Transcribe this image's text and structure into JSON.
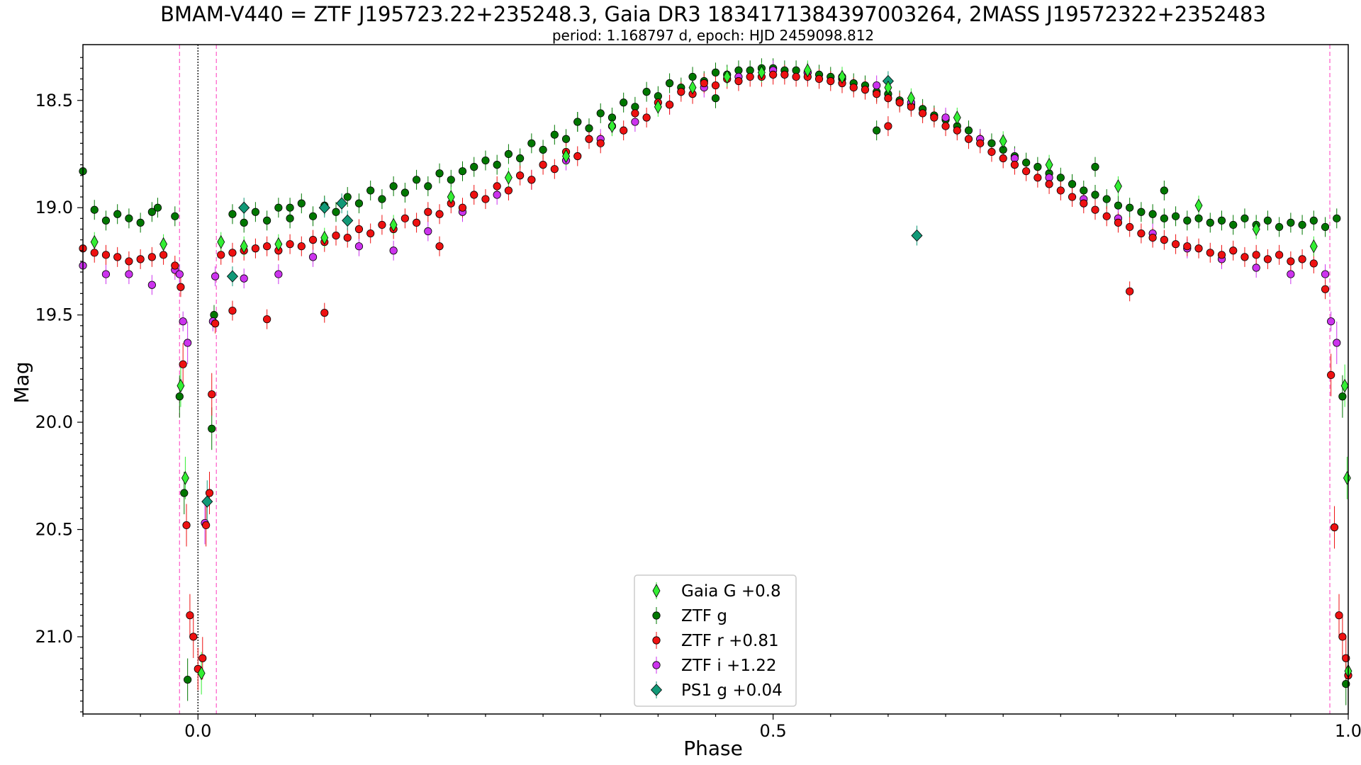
{
  "chart_data": {
    "type": "scatter",
    "title": "BMAM-V440 = ZTF J195723.22+235248.3, Gaia DR3 1834171384397003264, 2MASS J19572322+2352483",
    "subtitle": "period: 1.168797 d, epoch: HJD 2459098.812",
    "xlabel": "Phase",
    "ylabel": "Mag",
    "xlim": [
      -0.1,
      1.0
    ],
    "ylim": [
      21.36,
      18.24
    ],
    "y_inverted": true,
    "x_ticks": [
      0.0,
      0.5,
      1.0
    ],
    "x_tick_labels": [
      "0.0",
      "0.5",
      "1.0"
    ],
    "y_ticks": [
      18.5,
      19.0,
      19.5,
      20.0,
      20.5,
      21.0
    ],
    "y_tick_labels": [
      "18.5",
      "19.0",
      "19.5",
      "20.0",
      "20.5",
      "21.0"
    ],
    "grid": false,
    "legend_position": "bottom-center",
    "vertical_lines": [
      {
        "x": 0.0,
        "style": "dotted",
        "color": "#000000"
      },
      {
        "x": -0.016,
        "style": "dashed",
        "color": "#ff66cc"
      },
      {
        "x": 0.016,
        "style": "dashed",
        "color": "#ff66cc"
      },
      {
        "x": 0.984,
        "style": "dashed",
        "color": "#ff66cc"
      }
    ],
    "series": [
      {
        "name": "Gaia G +0.8",
        "marker": "thin-diamond",
        "color": "#33ee33",
        "x": [
          -0.09,
          -0.03,
          0.02,
          0.04,
          0.07,
          0.11,
          0.17,
          0.22,
          0.27,
          0.32,
          0.36,
          0.4,
          0.43,
          0.46,
          0.49,
          0.53,
          0.56,
          0.6,
          0.62,
          0.66,
          0.7,
          0.74,
          0.8,
          0.87,
          0.92,
          0.97,
          -0.015,
          -0.011,
          0.003,
          0.997,
          0.999,
          1.0
        ],
        "y": [
          19.16,
          19.17,
          19.16,
          19.18,
          19.17,
          19.14,
          19.08,
          18.95,
          18.86,
          18.76,
          18.62,
          18.53,
          18.44,
          18.39,
          18.37,
          18.36,
          18.39,
          18.44,
          18.49,
          18.58,
          18.69,
          18.8,
          18.9,
          18.99,
          19.1,
          19.18,
          19.83,
          20.26,
          21.17,
          19.83,
          20.26,
          21.16
        ]
      },
      {
        "name": "ZTF g",
        "marker": "circle",
        "color": "#007700",
        "x": [
          -0.1,
          -0.09,
          -0.08,
          -0.07,
          -0.06,
          -0.05,
          -0.04,
          -0.035,
          -0.02,
          -0.016,
          -0.012,
          -0.009,
          0.012,
          0.014,
          0.03,
          0.04,
          0.05,
          0.06,
          0.07,
          0.08,
          0.09,
          0.1,
          0.11,
          0.12,
          0.13,
          0.14,
          0.15,
          0.16,
          0.17,
          0.18,
          0.19,
          0.2,
          0.21,
          0.22,
          0.23,
          0.24,
          0.25,
          0.26,
          0.27,
          0.28,
          0.29,
          0.3,
          0.31,
          0.32,
          0.33,
          0.34,
          0.35,
          0.36,
          0.37,
          0.38,
          0.39,
          0.4,
          0.41,
          0.42,
          0.43,
          0.44,
          0.45,
          0.46,
          0.47,
          0.48,
          0.49,
          0.5,
          0.51,
          0.52,
          0.53,
          0.54,
          0.55,
          0.56,
          0.57,
          0.58,
          0.59,
          0.6,
          0.61,
          0.62,
          0.63,
          0.64,
          0.65,
          0.66,
          0.67,
          0.68,
          0.69,
          0.7,
          0.71,
          0.72,
          0.73,
          0.74,
          0.75,
          0.76,
          0.77,
          0.78,
          0.79,
          0.8,
          0.81,
          0.82,
          0.83,
          0.84,
          0.85,
          0.86,
          0.87,
          0.88,
          0.89,
          0.9,
          0.91,
          0.92,
          0.93,
          0.94,
          0.95,
          0.96,
          0.97,
          0.98,
          0.99,
          0.995,
          0.998,
          0.59,
          0.45,
          0.78,
          0.84,
          0.08,
          0.33
        ],
        "y": [
          18.83,
          19.01,
          19.06,
          19.03,
          19.05,
          19.07,
          19.02,
          19.0,
          19.04,
          19.88,
          20.33,
          21.2,
          20.03,
          19.5,
          19.03,
          19.07,
          19.02,
          19.06,
          19.0,
          19.05,
          18.98,
          19.04,
          18.99,
          19.02,
          18.95,
          18.98,
          18.92,
          18.96,
          18.9,
          18.93,
          18.87,
          18.9,
          18.84,
          18.87,
          18.83,
          18.81,
          18.78,
          18.8,
          18.75,
          18.77,
          18.7,
          18.73,
          18.66,
          18.68,
          18.6,
          18.63,
          18.56,
          18.58,
          18.51,
          18.53,
          18.46,
          18.48,
          18.42,
          18.44,
          18.39,
          18.41,
          18.37,
          18.38,
          18.36,
          18.36,
          18.35,
          18.35,
          18.36,
          18.36,
          18.37,
          18.38,
          18.39,
          18.4,
          18.42,
          18.43,
          18.46,
          18.47,
          18.5,
          18.52,
          18.54,
          18.57,
          18.59,
          18.62,
          18.64,
          18.68,
          18.7,
          18.73,
          18.76,
          18.79,
          18.81,
          18.84,
          18.86,
          18.89,
          18.92,
          18.94,
          18.96,
          18.99,
          19.0,
          19.02,
          19.03,
          19.05,
          19.04,
          19.06,
          19.05,
          19.07,
          19.06,
          19.08,
          19.05,
          19.08,
          19.06,
          19.09,
          19.07,
          19.08,
          19.06,
          19.09,
          19.05,
          19.88,
          21.22,
          18.64,
          18.49,
          18.81,
          18.92,
          19.0,
          18.6
        ]
      },
      {
        "name": "ZTF r +0.81",
        "marker": "circle",
        "color": "#ee1111",
        "x": [
          -0.1,
          -0.09,
          -0.08,
          -0.07,
          -0.06,
          -0.05,
          -0.04,
          -0.03,
          -0.02,
          -0.015,
          -0.013,
          -0.01,
          -0.007,
          -0.004,
          0.0,
          0.004,
          0.007,
          0.01,
          0.012,
          0.015,
          0.02,
          0.03,
          0.04,
          0.05,
          0.06,
          0.07,
          0.08,
          0.09,
          0.1,
          0.11,
          0.12,
          0.13,
          0.14,
          0.15,
          0.16,
          0.17,
          0.18,
          0.19,
          0.2,
          0.21,
          0.22,
          0.23,
          0.24,
          0.25,
          0.26,
          0.27,
          0.28,
          0.29,
          0.3,
          0.31,
          0.32,
          0.33,
          0.34,
          0.35,
          0.36,
          0.37,
          0.38,
          0.39,
          0.4,
          0.41,
          0.42,
          0.43,
          0.44,
          0.45,
          0.46,
          0.47,
          0.48,
          0.49,
          0.5,
          0.51,
          0.52,
          0.53,
          0.54,
          0.55,
          0.56,
          0.57,
          0.58,
          0.59,
          0.6,
          0.61,
          0.62,
          0.63,
          0.64,
          0.65,
          0.66,
          0.67,
          0.68,
          0.69,
          0.7,
          0.71,
          0.72,
          0.73,
          0.74,
          0.75,
          0.76,
          0.77,
          0.78,
          0.79,
          0.8,
          0.81,
          0.82,
          0.83,
          0.84,
          0.85,
          0.86,
          0.87,
          0.88,
          0.89,
          0.9,
          0.91,
          0.92,
          0.93,
          0.94,
          0.95,
          0.96,
          0.97,
          0.98,
          0.985,
          0.988,
          0.992,
          0.995,
          0.998,
          1.0,
          0.03,
          0.06,
          0.11,
          0.21,
          0.81,
          0.6
        ],
        "y": [
          19.19,
          19.21,
          19.22,
          19.23,
          19.25,
          19.24,
          19.23,
          19.22,
          19.27,
          19.37,
          19.73,
          20.48,
          20.9,
          21.0,
          21.15,
          21.1,
          20.48,
          20.33,
          19.87,
          19.54,
          19.22,
          19.21,
          19.2,
          19.19,
          19.18,
          19.2,
          19.17,
          19.18,
          19.15,
          19.16,
          19.13,
          19.14,
          19.1,
          19.12,
          19.08,
          19.1,
          19.05,
          19.07,
          19.02,
          19.03,
          18.98,
          19.0,
          18.94,
          18.96,
          18.9,
          18.92,
          18.85,
          18.87,
          18.8,
          18.82,
          18.74,
          18.76,
          18.68,
          18.7,
          18.62,
          18.64,
          18.56,
          18.58,
          18.51,
          18.52,
          18.46,
          18.47,
          18.42,
          18.43,
          18.4,
          18.41,
          18.39,
          18.39,
          18.38,
          18.38,
          18.39,
          18.39,
          18.4,
          18.41,
          18.42,
          18.44,
          18.45,
          18.47,
          18.49,
          18.51,
          18.53,
          18.56,
          18.58,
          18.62,
          18.64,
          18.68,
          18.7,
          18.74,
          18.77,
          18.8,
          18.83,
          18.86,
          18.89,
          18.92,
          18.95,
          18.98,
          19.01,
          19.04,
          19.07,
          19.09,
          19.12,
          19.14,
          19.15,
          19.17,
          19.18,
          19.19,
          19.21,
          19.22,
          19.2,
          19.23,
          19.22,
          19.24,
          19.22,
          19.25,
          19.24,
          19.26,
          19.38,
          19.78,
          20.49,
          20.9,
          21.0,
          21.1,
          21.18,
          19.48,
          19.52,
          19.49,
          19.18,
          19.39,
          18.62
        ]
      },
      {
        "name": "ZTF i +1.22",
        "marker": "circle",
        "color": "#cc33ee",
        "x": [
          -0.1,
          -0.08,
          -0.06,
          -0.04,
          -0.02,
          -0.016,
          -0.013,
          -0.009,
          0.006,
          0.013,
          0.015,
          0.04,
          0.07,
          0.1,
          0.14,
          0.17,
          0.2,
          0.23,
          0.26,
          0.29,
          0.32,
          0.35,
          0.38,
          0.41,
          0.44,
          0.47,
          0.5,
          0.53,
          0.56,
          0.59,
          0.62,
          0.65,
          0.68,
          0.71,
          0.74,
          0.77,
          0.8,
          0.83,
          0.86,
          0.89,
          0.92,
          0.95,
          0.98,
          0.985,
          0.99
        ],
        "y": [
          19.27,
          19.31,
          19.31,
          19.36,
          19.29,
          19.31,
          19.53,
          19.63,
          20.47,
          19.53,
          19.32,
          19.33,
          19.31,
          19.23,
          19.18,
          19.2,
          19.11,
          19.02,
          18.94,
          18.87,
          18.78,
          18.68,
          18.6,
          18.52,
          18.44,
          18.39,
          18.36,
          18.37,
          18.39,
          18.43,
          18.51,
          18.58,
          18.68,
          18.77,
          18.86,
          18.96,
          19.05,
          19.12,
          19.19,
          19.24,
          19.28,
          19.31,
          19.31,
          19.53,
          19.63
        ]
      },
      {
        "name": "PS1 g +0.04",
        "marker": "diamond",
        "color": "#119977",
        "x": [
          0.008,
          0.04,
          0.03,
          0.11,
          0.125,
          0.13,
          0.6,
          0.625
        ],
        "y": [
          20.37,
          19.0,
          19.32,
          19.0,
          18.98,
          19.06,
          18.41,
          19.13
        ]
      }
    ],
    "legend": [
      "Gaia G +0.8",
      "ZTF g",
      "ZTF r +0.81",
      "ZTF i +1.22",
      "PS1 g +0.04"
    ]
  }
}
